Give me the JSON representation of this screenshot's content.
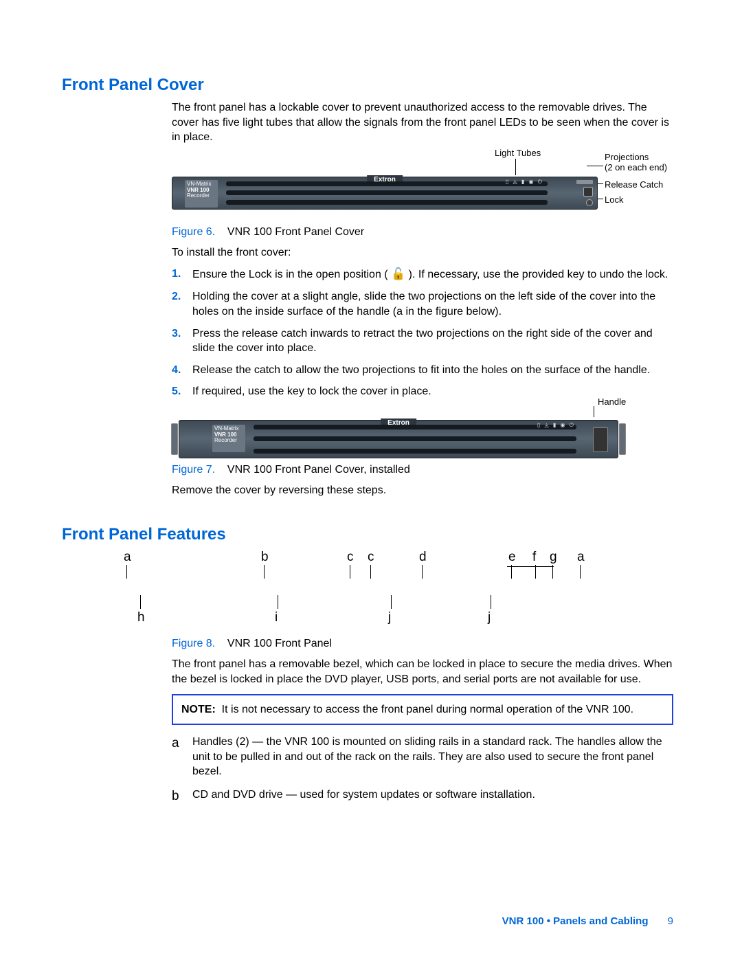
{
  "section1": {
    "title": "Front Panel Cover",
    "intro": "The front panel has a lockable cover to prevent unauthorized access to the removable drives. The cover has five light tubes that allow the signals from the front panel LEDs to be seen when the cover is in place."
  },
  "fig6": {
    "label": "Figure 6.",
    "caption": "VNR 100 Front Panel Cover",
    "callouts": {
      "lightTubes": "Light Tubes",
      "projections": "Projections",
      "projectionsSub": "(2 on each end)",
      "releaseCatch": "Release Catch",
      "lock": "Lock"
    }
  },
  "device": {
    "brand": "Extron",
    "badgeTop": "VN-Matrix",
    "badgeLine1": "VNR 100",
    "badgeLine2": "Recorder"
  },
  "installIntro": "To install the front cover:",
  "steps": {
    "s1a": "Ensure the Lock is in the open position ( ",
    "s1b": " ). If necessary, use the provided key to undo the lock.",
    "s2a": "Holding the cover at a slight angle, slide the two projections on the left side of the cover into the holes on the inside surface of the handle (",
    "s2b": " in the figure below).",
    "s2letter": "a",
    "s3": "Press the release catch inwards to retract the two projections on the right side of the cover and slide the cover into place.",
    "s4": "Release the catch to allow the two projections to fit into the holes on the surface of the handle.",
    "s5": "If required, use the key to lock the cover in place."
  },
  "fig7": {
    "label": "Figure 7.",
    "caption": "VNR 100 Front Panel Cover, installed",
    "handle": "Handle"
  },
  "removeText": "Remove the cover by reversing these steps.",
  "section2": {
    "title": "Front Panel Features"
  },
  "fig8": {
    "label": "Figure 8.",
    "caption": "VNR 100 Front Panel",
    "letters": {
      "top": [
        "a",
        "b",
        "c",
        "c",
        "d",
        "e",
        "f",
        "g",
        "a"
      ],
      "bottom": [
        "h",
        "i",
        "j",
        "j"
      ],
      "topX": [
        0,
        200,
        325,
        355,
        430,
        560,
        595,
        620,
        660
      ],
      "bottomX": [
        20,
        220,
        385,
        530
      ]
    }
  },
  "featuresIntro": "The front panel has a removable bezel, which can be locked in place to secure the media drives. When the bezel is locked in place the DVD player, USB ports, and serial ports are not available for use.",
  "note": {
    "label": "NOTE:",
    "text": "It is not necessary to access the front panel during normal operation of the VNR 100."
  },
  "features": {
    "a": {
      "letter": "a",
      "text": "Handles (2) — the VNR 100 is mounted on sliding rails in a standard rack. The handles allow the unit to be pulled in and out of the rack on the rails. They are also used to secure the front panel bezel."
    },
    "b": {
      "letter": "b",
      "text": "CD and DVD drive — used for system updates or software installation."
    }
  },
  "footer": {
    "title": "VNR 100 • Panels and Cabling",
    "page": "9"
  },
  "colors": {
    "heading": "#0066d6",
    "noteBorder": "#2040e0",
    "text": "#000000",
    "bg": "#ffffff"
  }
}
